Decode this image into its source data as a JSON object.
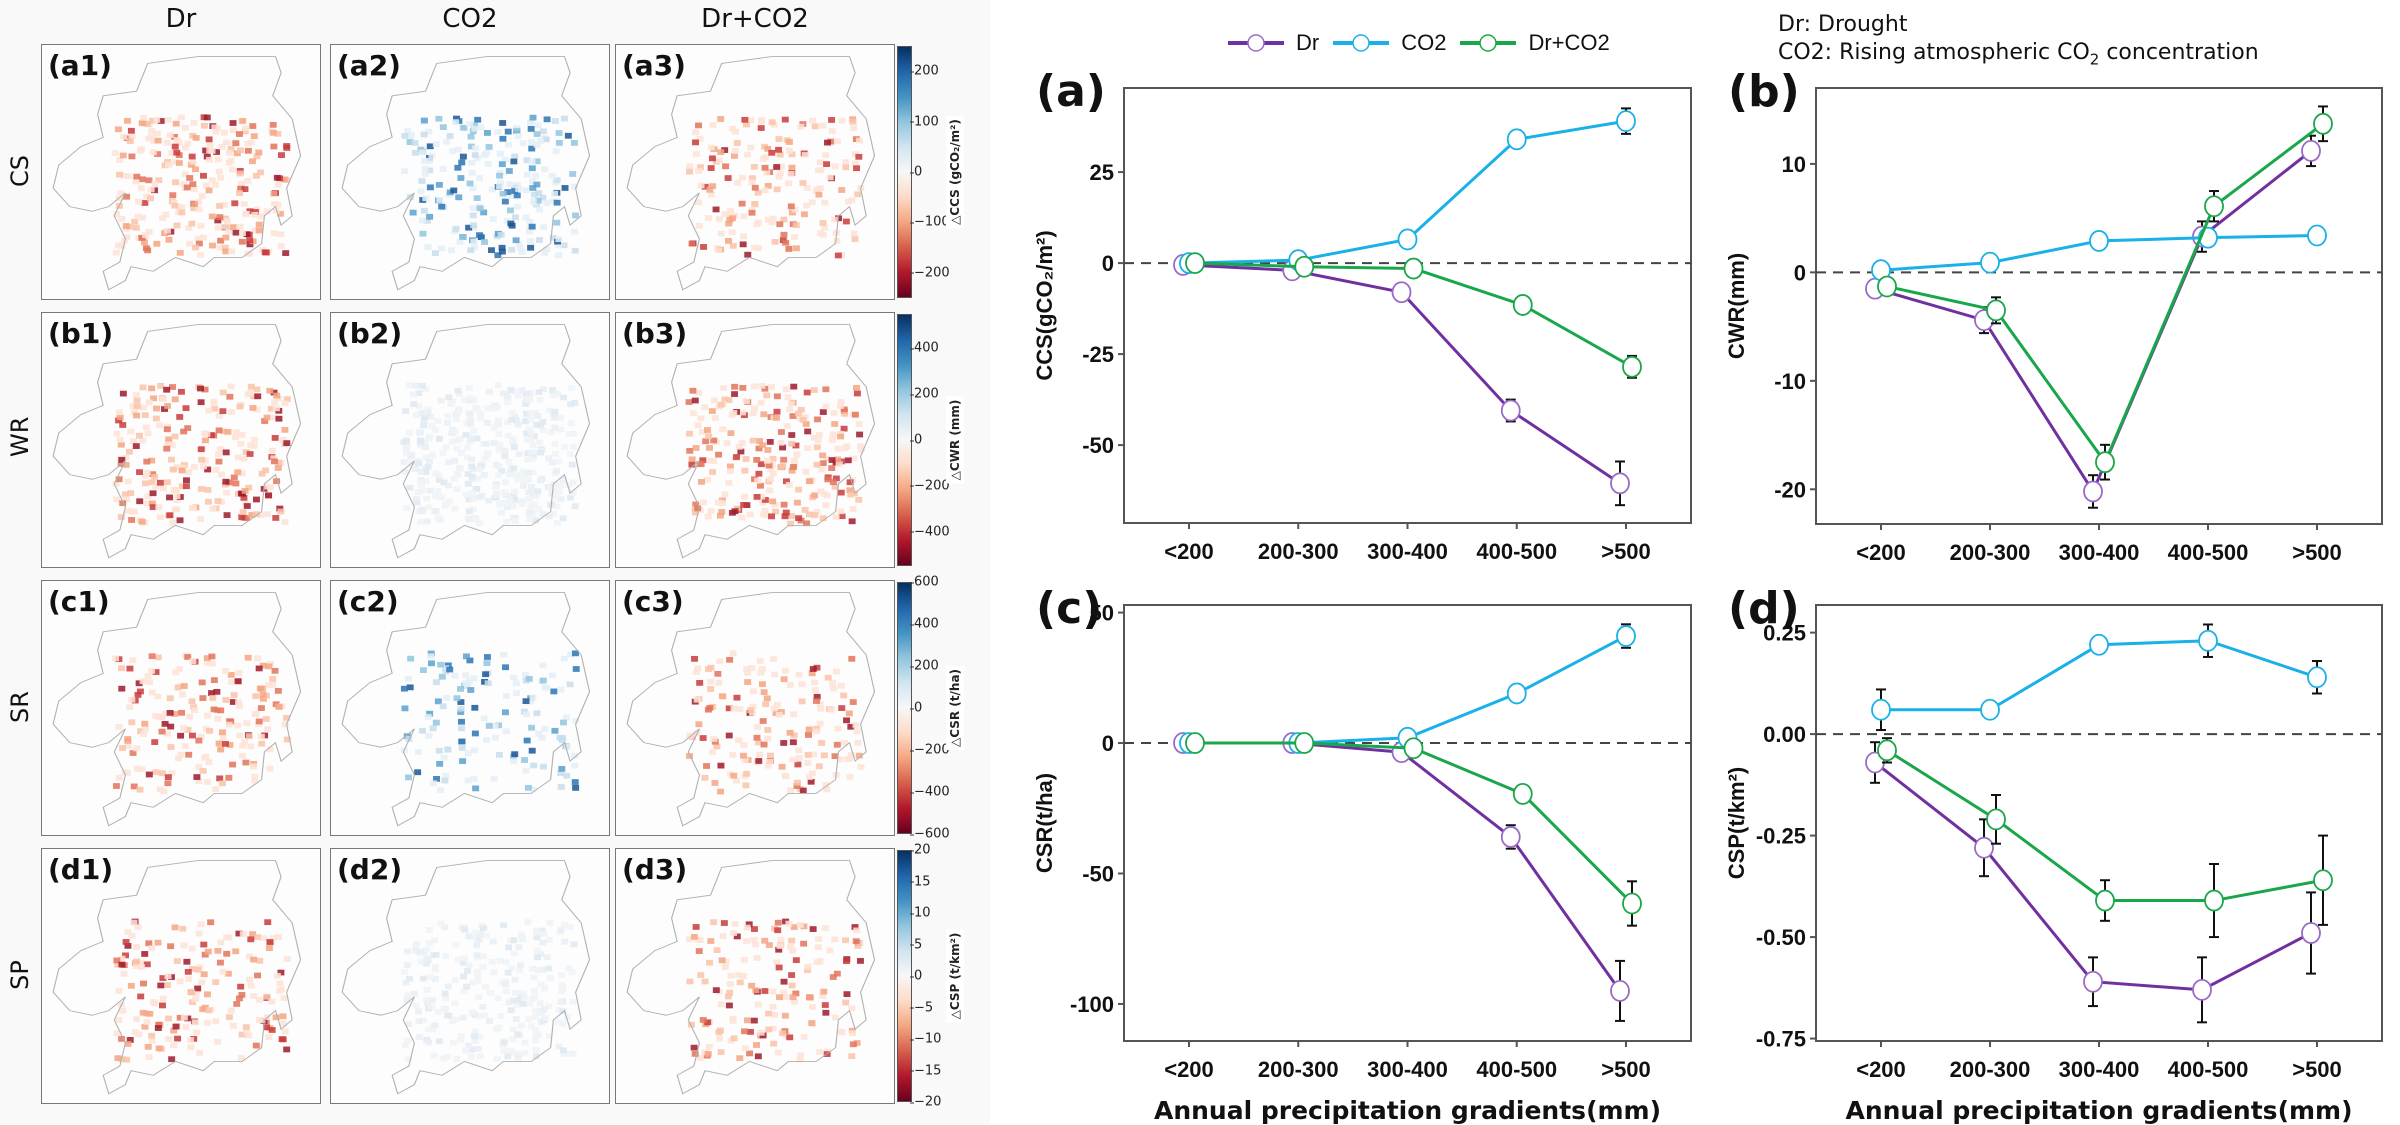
{
  "maps": {
    "columns": [
      "Dr",
      "CO2",
      "Dr+CO2"
    ],
    "rows": [
      {
        "label": "CS",
        "panels": [
          "(a1)",
          "(a2)",
          "(a3)"
        ],
        "colorbar": {
          "label": "△CCS (gCO₂/m²)",
          "ticks": [
            "200",
            "100",
            "0",
            "−100",
            "−200"
          ],
          "range": [
            -250,
            250
          ],
          "tick_values": [
            200,
            100,
            0,
            -100,
            -200
          ]
        }
      },
      {
        "label": "WR",
        "panels": [
          "(b1)",
          "(b2)",
          "(b3)"
        ],
        "colorbar": {
          "label": "△CWR (mm)",
          "ticks": [
            "400",
            "200",
            "0",
            "−200",
            "−400"
          ],
          "range": [
            -550,
            550
          ],
          "tick_values": [
            400,
            200,
            0,
            -200,
            -400
          ]
        }
      },
      {
        "label": "SR",
        "panels": [
          "(c1)",
          "(c2)",
          "(c3)"
        ],
        "colorbar": {
          "label": "△CSR (t/ha)",
          "ticks": [
            "600",
            "400",
            "200",
            "0",
            "−200",
            "−400",
            "−600"
          ],
          "range": [
            -600,
            600
          ],
          "tick_values": [
            600,
            400,
            200,
            0,
            -200,
            -400,
            -600
          ]
        }
      },
      {
        "label": "SP",
        "panels": [
          "(d1)",
          "(d2)",
          "(d3)"
        ],
        "colorbar": {
          "label": "△CSP (t/km²)",
          "ticks": [
            "20",
            "15",
            "10",
            "5",
            "0",
            "−5",
            "−10",
            "−15",
            "−20"
          ],
          "range": [
            -20,
            20
          ],
          "tick_values": [
            20,
            15,
            10,
            5,
            0,
            -5,
            -10,
            -15,
            -20
          ]
        }
      }
    ],
    "colormap": "RdBu (red = negative, blue = positive)"
  },
  "legend": {
    "items": [
      {
        "name": "Dr",
        "color": "#7030a0"
      },
      {
        "name": "CO2",
        "color": "#1ab0e8"
      },
      {
        "name": "Dr+CO2",
        "color": "#1aa64a"
      }
    ]
  },
  "note": {
    "line1": "Dr: Drought",
    "line2_prefix": "CO2: Rising atmospheric CO",
    "line2_sub": "2",
    "line2_suffix": " concentration"
  },
  "chart_data": [
    {
      "id": "a",
      "panel_label": "(a)",
      "type": "line",
      "categories": [
        "<200",
        "200-300",
        "300-400",
        "400-500",
        ">500"
      ],
      "ylabel": "CCS(gCO2/m2)",
      "ylabel_display": "CCS(gCO₂/m²)",
      "xlabel": "",
      "ylim": [
        -71.4,
        48.1
      ],
      "yticks": [
        25,
        0,
        -25,
        -50
      ],
      "ytick_labels": [
        "25",
        "0",
        "-25",
        "-50"
      ],
      "reference_line": 0,
      "series": [
        {
          "name": "Dr",
          "color": "#7030a0",
          "values": [
            -0.5,
            -2,
            -8,
            -40.5,
            -60.5
          ],
          "errors": [
            0,
            0,
            0,
            3,
            6
          ]
        },
        {
          "name": "CO2",
          "color": "#1ab0e8",
          "values": [
            0,
            0.8,
            6.5,
            34,
            39
          ],
          "errors": [
            0,
            0,
            0,
            2,
            3.5
          ]
        },
        {
          "name": "Dr+CO2",
          "color": "#1aa64a",
          "values": [
            0,
            -1,
            -1.5,
            -11.5,
            -28.5
          ],
          "errors": [
            0,
            0,
            0,
            1,
            3
          ]
        }
      ]
    },
    {
      "id": "b",
      "panel_label": "(b)",
      "type": "line",
      "categories": [
        "<200",
        "200-300",
        "300-400",
        "400-500",
        ">500"
      ],
      "ylabel": "CWR(mm)",
      "ylabel_display": "CWR(mm)",
      "xlabel": "",
      "ylim": [
        -23.2,
        17.0
      ],
      "yticks": [
        10,
        0,
        -10,
        -20
      ],
      "ytick_labels": [
        "10",
        "0",
        "-10",
        "-20"
      ],
      "reference_line": 0,
      "series": [
        {
          "name": "Dr",
          "color": "#7030a0",
          "values": [
            -1.5,
            -4.4,
            -20.2,
            3.3,
            11.2
          ],
          "errors": [
            0,
            1.2,
            1.5,
            1.4,
            1.4
          ]
        },
        {
          "name": "CO2",
          "color": "#1ab0e8",
          "values": [
            0.2,
            0.9,
            2.9,
            3.2,
            3.4
          ],
          "errors": [
            0,
            0,
            0,
            0,
            0
          ]
        },
        {
          "name": "Dr+CO2",
          "color": "#1aa64a",
          "values": [
            -1.3,
            -3.5,
            -17.5,
            6.1,
            13.7
          ],
          "errors": [
            0,
            1.2,
            1.6,
            1.4,
            1.6
          ]
        }
      ]
    },
    {
      "id": "c",
      "panel_label": "(c)",
      "type": "line",
      "categories": [
        "<200",
        "200-300",
        "300-400",
        "400-500",
        ">500"
      ],
      "ylabel": "CSR(t/ha)",
      "ylabel_display": "CSR(t/ha)",
      "xlabel": "Annual precipitation gradients(mm)",
      "ylim": [
        -114.2,
        52.9
      ],
      "yticks": [
        50,
        0,
        -50,
        -100
      ],
      "ytick_labels": [
        "50",
        "0",
        "-50",
        "-100"
      ],
      "reference_line": 0,
      "series": [
        {
          "name": "Dr",
          "color": "#7030a0",
          "values": [
            0,
            0,
            -3.5,
            -36,
            -95
          ],
          "errors": [
            0,
            0,
            0,
            4.5,
            11.5
          ]
        },
        {
          "name": "CO2",
          "color": "#1ab0e8",
          "values": [
            0,
            0,
            2,
            19,
            41
          ],
          "errors": [
            0,
            0,
            0,
            0,
            4.5
          ]
        },
        {
          "name": "Dr+CO2",
          "color": "#1aa64a",
          "values": [
            0,
            0,
            -2,
            -19.5,
            -61.5
          ],
          "errors": [
            0,
            0,
            0,
            2.5,
            8.5
          ]
        }
      ]
    },
    {
      "id": "d",
      "panel_label": "(d)",
      "type": "line",
      "categories": [
        "<200",
        "200-300",
        "300-400",
        "400-500",
        ">500"
      ],
      "ylabel": "CSP(t/km2)",
      "ylabel_display": "CSP(t/km²)",
      "xlabel": "Annual precipitation gradients(mm)",
      "ylim": [
        -0.756,
        0.318
      ],
      "yticks": [
        0.25,
        0,
        -0.25,
        -0.5,
        -0.75
      ],
      "ytick_labels": [
        "0.25",
        "0.00",
        "-0.25",
        "-0.50",
        "-0.75"
      ],
      "reference_line": 0,
      "series": [
        {
          "name": "Dr",
          "color": "#7030a0",
          "values": [
            -0.07,
            -0.28,
            -0.61,
            -0.63,
            -0.49
          ],
          "errors": [
            0.05,
            0.07,
            0.06,
            0.08,
            0.1
          ]
        },
        {
          "name": "CO2",
          "color": "#1ab0e8",
          "values": [
            0.06,
            0.06,
            0.22,
            0.23,
            0.14
          ],
          "errors": [
            0.05,
            0,
            0.02,
            0.04,
            0.04
          ]
        },
        {
          "name": "Dr+CO2",
          "color": "#1aa64a",
          "values": [
            -0.04,
            -0.21,
            -0.41,
            -0.41,
            -0.36
          ],
          "errors": [
            0.03,
            0.06,
            0.05,
            0.09,
            0.11
          ]
        }
      ]
    }
  ]
}
